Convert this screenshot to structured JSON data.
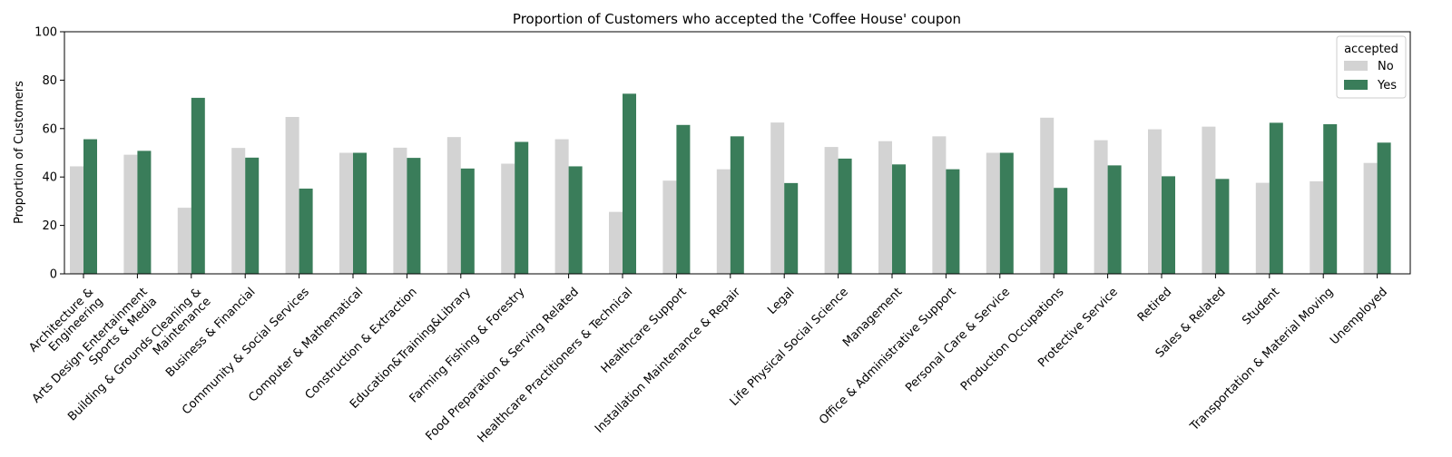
{
  "chart_data": {
    "type": "bar",
    "title": "Proportion of Customers who accepted the 'Coffee House' coupon",
    "xlabel": "",
    "ylabel": "Proportion of Customers",
    "ylim": [
      0,
      100
    ],
    "yticks": [
      0,
      20,
      40,
      60,
      80,
      100
    ],
    "grid": false,
    "legend": {
      "title": "accepted",
      "placement": "top-right"
    },
    "categories": [
      [
        "Architecture &",
        "Engineering"
      ],
      [
        "Arts Design Entertainment",
        "Sports & Media"
      ],
      [
        "Building & Grounds Cleaning &",
        "Maintenance"
      ],
      [
        "Business & Financial"
      ],
      [
        "Community & Social Services"
      ],
      [
        "Computer & Mathematical"
      ],
      [
        "Construction & Extraction"
      ],
      [
        "Education&Training&Library"
      ],
      [
        "Farming Fishing & Forestry"
      ],
      [
        "Food Preparation & Serving Related"
      ],
      [
        "Healthcare Practitioners & Technical"
      ],
      [
        "Healthcare Support"
      ],
      [
        "Installation Maintenance & Repair"
      ],
      [
        "Legal"
      ],
      [
        "Life Physical Social Science"
      ],
      [
        "Management"
      ],
      [
        "Office & Administrative Support"
      ],
      [
        "Personal Care & Service"
      ],
      [
        "Production Occupations"
      ],
      [
        "Protective Service"
      ],
      [
        "Retired"
      ],
      [
        "Sales & Related"
      ],
      [
        "Student"
      ],
      [
        "Transportation & Material Moving"
      ],
      [
        "Unemployed"
      ]
    ],
    "series": [
      {
        "name": "No",
        "color": "#d3d3d3",
        "values": [
          44.4,
          49.2,
          27.3,
          52.0,
          64.8,
          50.0,
          52.1,
          56.5,
          45.5,
          55.6,
          25.6,
          38.5,
          43.2,
          62.5,
          52.4,
          54.8,
          56.8,
          50.0,
          64.5,
          55.2,
          59.7,
          60.8,
          37.6,
          38.2,
          45.8
        ]
      },
      {
        "name": "Yes",
        "color": "#3a7d5a",
        "values": [
          55.6,
          50.8,
          72.7,
          48.0,
          35.2,
          50.0,
          47.9,
          43.5,
          54.5,
          44.4,
          74.4,
          61.5,
          56.8,
          37.5,
          47.6,
          45.2,
          43.2,
          50.0,
          35.5,
          44.8,
          40.3,
          39.2,
          62.4,
          61.8,
          54.2
        ]
      }
    ]
  }
}
